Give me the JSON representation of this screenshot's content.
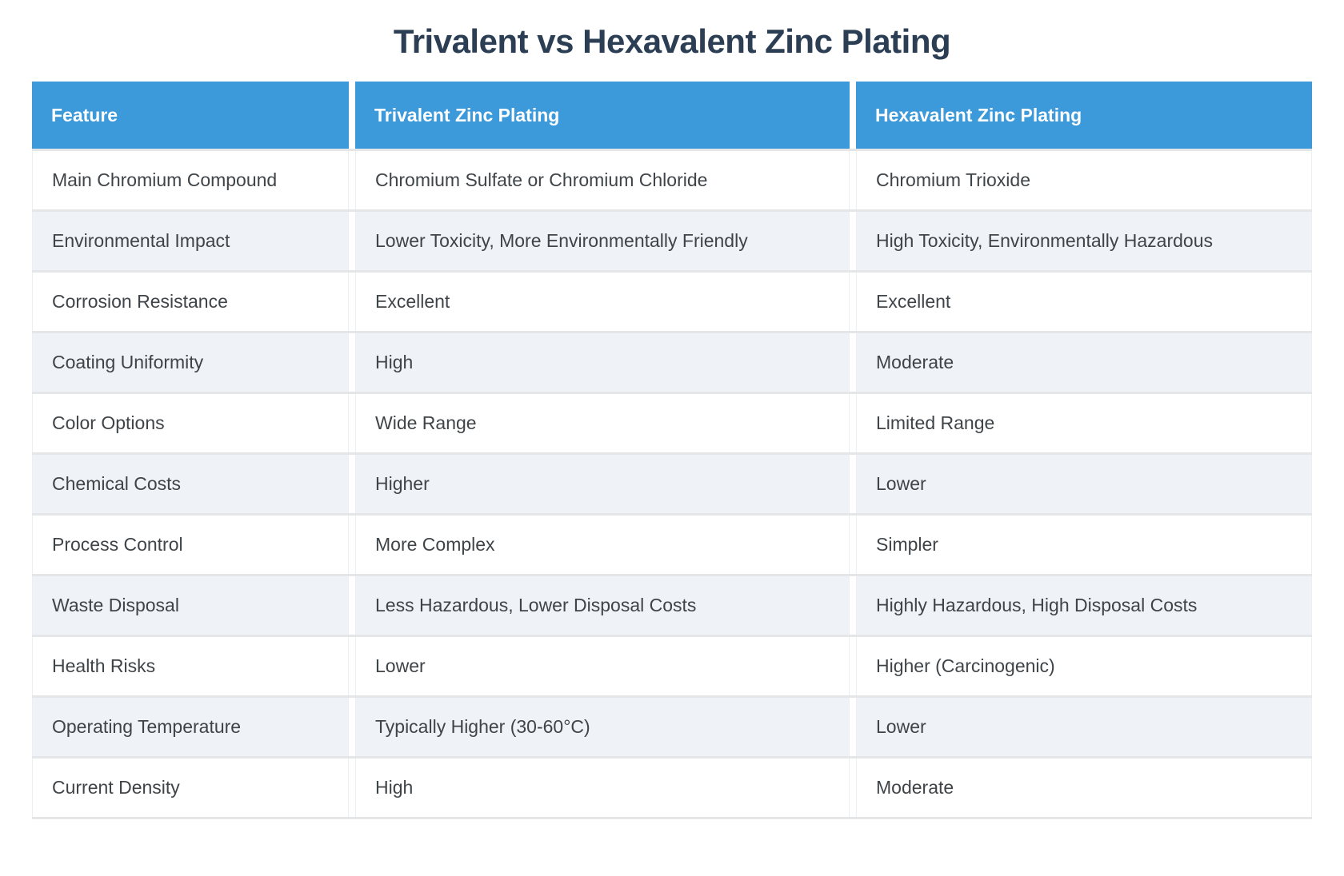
{
  "title": "Trivalent vs Hexavalent Zinc Plating",
  "colors": {
    "header_bg": "#3c99da",
    "header_text": "#ffffff",
    "title_text": "#2b3e54",
    "row_alt_bg": "#eff2f7",
    "row_bg": "#ffffff",
    "separator": "#e4e6e8",
    "body_text": "#3f4448"
  },
  "table": {
    "columns": [
      "Feature",
      "Trivalent Zinc Plating",
      "Hexavalent Zinc Plating"
    ],
    "rows": [
      {
        "feature": "Main Chromium Compound",
        "trivalent": "Chromium Sulfate or Chromium Chloride",
        "hexavalent": "Chromium Trioxide"
      },
      {
        "feature": "Environmental Impact",
        "trivalent": "Lower Toxicity, More Environmentally Friendly",
        "hexavalent": "High Toxicity, Environmentally Hazardous"
      },
      {
        "feature": "Corrosion Resistance",
        "trivalent": "Excellent",
        "hexavalent": "Excellent"
      },
      {
        "feature": "Coating Uniformity",
        "trivalent": "High",
        "hexavalent": "Moderate"
      },
      {
        "feature": "Color Options",
        "trivalent": "Wide Range",
        "hexavalent": "Limited Range"
      },
      {
        "feature": "Chemical Costs",
        "trivalent": "Higher",
        "hexavalent": "Lower"
      },
      {
        "feature": "Process Control",
        "trivalent": "More Complex",
        "hexavalent": "Simpler"
      },
      {
        "feature": "Waste Disposal",
        "trivalent": "Less Hazardous, Lower Disposal Costs",
        "hexavalent": "Highly Hazardous, High Disposal Costs"
      },
      {
        "feature": "Health Risks",
        "trivalent": "Lower",
        "hexavalent": "Higher (Carcinogenic)"
      },
      {
        "feature": "Operating Temperature",
        "trivalent": "Typically Higher (30-60°C)",
        "hexavalent": "Lower"
      },
      {
        "feature": "Current Density",
        "trivalent": "High",
        "hexavalent": "Moderate"
      }
    ]
  }
}
